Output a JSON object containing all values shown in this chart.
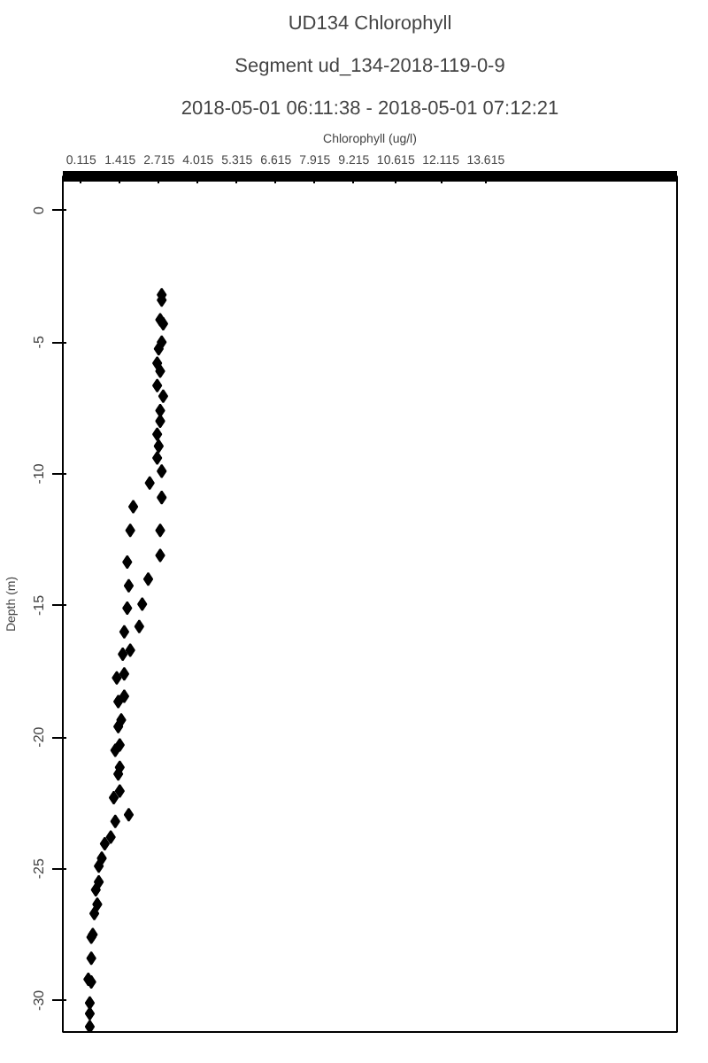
{
  "chart_data": {
    "type": "scatter",
    "title": "UD134 Chlorophyll",
    "subtitle": "Segment ud_134-2018-119-0-9",
    "annotations": [
      "2018-05-01 06:11:38 - 2018-05-01 07:12:21"
    ],
    "xlabel": "Chlorophyll (ug/l)",
    "ylabel": "Depth (m)",
    "xlim": [
      -0.5,
      20
    ],
    "xticks": [
      {
        "value": 0.115,
        "label": "0.115"
      },
      {
        "value": 1.415,
        "label": "1.415"
      },
      {
        "value": 2.715,
        "label": "2.715"
      },
      {
        "value": 4.015,
        "label": "4.015"
      },
      {
        "value": 5.315,
        "label": "5.315"
      },
      {
        "value": 6.615,
        "label": "6.615"
      },
      {
        "value": 7.915,
        "label": "7.915"
      },
      {
        "value": 9.215,
        "label": "9.215"
      },
      {
        "value": 10.615,
        "label": "10.615"
      },
      {
        "value": 12.115,
        "label": "12.115"
      },
      {
        "value": 13.615,
        "label": "13.615"
      }
    ],
    "ylim": [
      -31.2,
      1.3
    ],
    "yticks": [
      0,
      -5,
      -10,
      -15,
      -20,
      -25,
      -30
    ],
    "tick_labels": "x2y",
    "grid": false,
    "marker": "diamond",
    "series": [
      {
        "color": "#000000",
        "x": [
          2.8,
          2.8,
          2.75,
          2.85,
          2.8,
          2.7,
          2.65,
          2.75,
          2.65,
          2.85,
          2.75,
          2.75,
          2.65,
          2.7,
          2.65,
          2.8,
          2.4,
          2.8,
          1.85,
          1.75,
          2.75,
          1.65,
          2.75,
          2.35,
          1.7,
          2.15,
          1.65,
          2.05,
          1.55,
          1.75,
          1.5,
          1.55,
          1.3,
          1.55,
          1.35,
          1.45,
          1.35,
          1.4,
          1.25,
          1.4,
          1.35,
          1.4,
          1.2,
          1.7,
          1.25,
          1.1,
          0.9,
          0.8,
          0.7,
          0.7,
          0.6,
          0.65,
          0.55,
          0.5,
          0.45,
          0.45,
          0.35,
          0.45,
          0.4,
          0.4,
          0.4
        ],
        "values": [
          -3.2,
          -3.4,
          -4.15,
          -4.3,
          -5.0,
          -5.25,
          -5.8,
          -6.1,
          -6.65,
          -7.05,
          -7.6,
          -8.0,
          -8.5,
          -8.95,
          -9.4,
          -9.9,
          -10.35,
          -10.9,
          -11.25,
          -12.15,
          -12.15,
          -13.35,
          -13.1,
          -14.0,
          -14.25,
          -14.95,
          -15.1,
          -15.8,
          -16.0,
          -16.7,
          -16.85,
          -17.6,
          -17.75,
          -18.45,
          -18.65,
          -19.35,
          -19.6,
          -20.3,
          -20.5,
          -21.15,
          -21.4,
          -22.05,
          -22.3,
          -22.95,
          -23.2,
          -23.8,
          -24.05,
          -24.6,
          -24.9,
          -25.5,
          -25.8,
          -26.35,
          -26.7,
          -27.5,
          -27.6,
          -28.4,
          -29.2,
          -29.3,
          -30.1,
          -30.5,
          -31.0
        ]
      }
    ]
  }
}
